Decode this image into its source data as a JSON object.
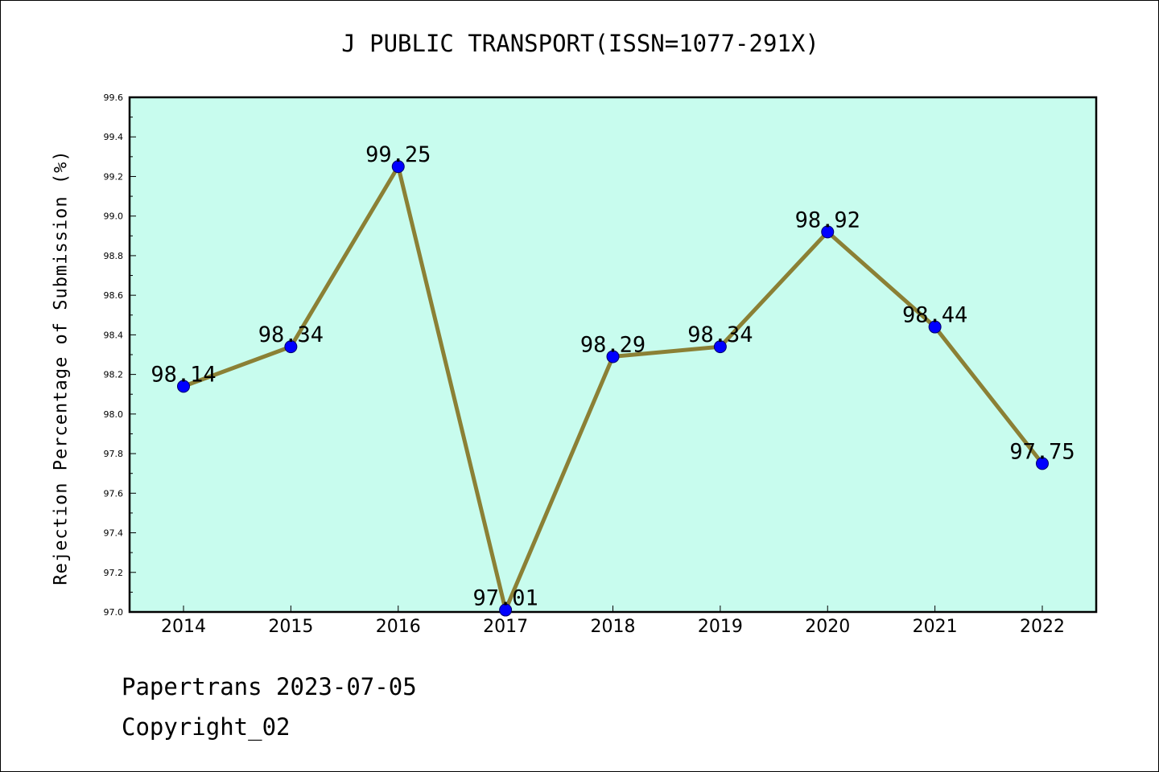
{
  "title": "J PUBLIC TRANSPORT(ISSN=1077-291X)",
  "footer": {
    "line1": "Papertrans 2023-07-05",
    "line2": "Copyright_02"
  },
  "colors": {
    "plot_background": "#c8fcee",
    "line": "#8b8035",
    "marker": "#0000ff",
    "axis": "#000000"
  },
  "chart_data": {
    "type": "line",
    "title": "J PUBLIC TRANSPORT(ISSN=1077-291X)",
    "xlabel": "",
    "ylabel": "Rejection Percentage of Submission (%)",
    "categories": [
      "2014",
      "2015",
      "2016",
      "2017",
      "2018",
      "2019",
      "2020",
      "2021",
      "2022"
    ],
    "series": [
      {
        "values": [
          98.14,
          98.34,
          99.25,
          97.01,
          98.29,
          98.34,
          98.92,
          98.44,
          97.75
        ],
        "data_labels": [
          "98.14",
          "98.34",
          "99.25",
          "97.01",
          "98.29",
          "98.34",
          "98.92",
          "98.44",
          "97.75"
        ]
      }
    ],
    "ylim": [
      97.0,
      99.6
    ],
    "yticks": [
      "97.0",
      "97.2",
      "97.4",
      "97.6",
      "97.8",
      "98.0",
      "98.2",
      "98.4",
      "98.6",
      "98.8",
      "99.0",
      "99.2",
      "99.4",
      "99.6"
    ],
    "grid": false,
    "legend": "none",
    "marker": "circle"
  }
}
